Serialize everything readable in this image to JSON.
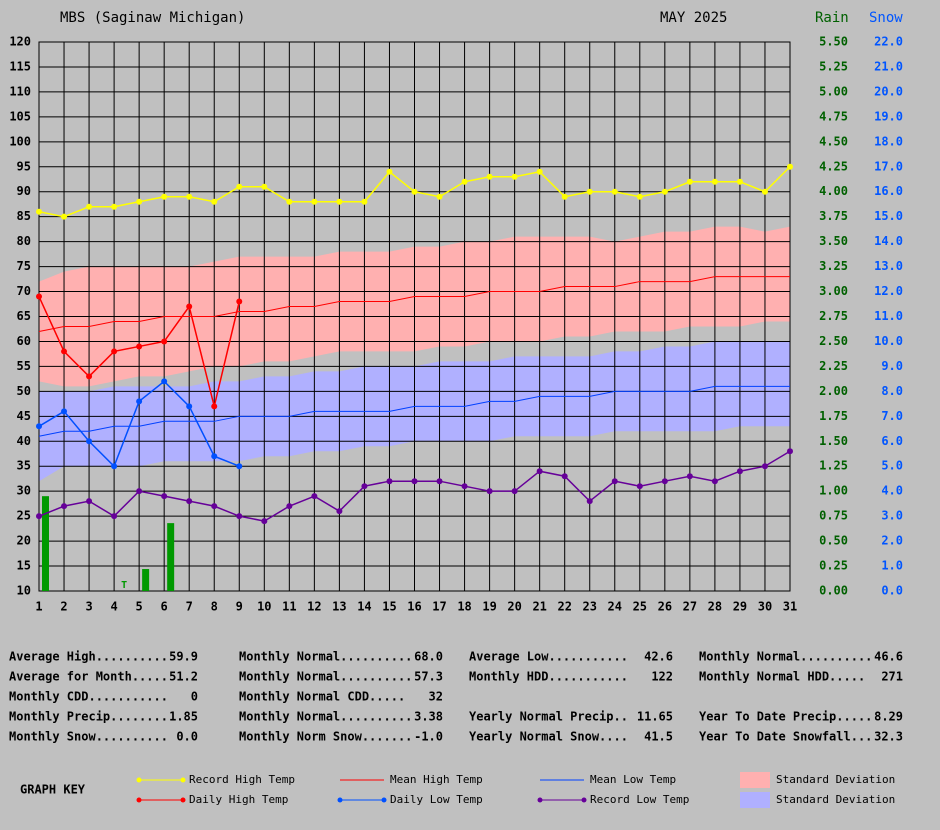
{
  "chart_data": {
    "type": "line",
    "title": "MBS (Saginaw Michigan)",
    "subtitle": "MAY 2025",
    "y2_label": "Rain",
    "y3_label": "Snow",
    "x": [
      1,
      2,
      3,
      4,
      5,
      6,
      7,
      8,
      9,
      10,
      11,
      12,
      13,
      14,
      15,
      16,
      17,
      18,
      19,
      20,
      21,
      22,
      23,
      24,
      25,
      26,
      27,
      28,
      29,
      30,
      31
    ],
    "xlim": [
      1,
      31
    ],
    "ylim": [
      10,
      120
    ],
    "yticks": [
      10,
      15,
      20,
      25,
      30,
      35,
      40,
      45,
      50,
      55,
      60,
      65,
      70,
      75,
      80,
      85,
      90,
      95,
      100,
      105,
      110,
      115,
      120
    ],
    "y2lim": [
      0,
      5.5
    ],
    "y2ticks": [
      {
        "value": 0,
        "label": "0.00"
      },
      {
        "value": 0.25,
        "label": "0.25"
      },
      {
        "value": 0.5,
        "label": "0.50"
      },
      {
        "value": 0.75,
        "label": "0.75"
      },
      {
        "value": 1,
        "label": "1.00"
      },
      {
        "value": 1.25,
        "label": "1.25"
      },
      {
        "value": 1.5,
        "label": "1.50"
      },
      {
        "value": 1.75,
        "label": "1.75"
      },
      {
        "value": 2,
        "label": "2.00"
      },
      {
        "value": 2.25,
        "label": "2.25"
      },
      {
        "value": 2.5,
        "label": "2.50"
      },
      {
        "value": 2.75,
        "label": "2.75"
      },
      {
        "value": 3,
        "label": "3.00"
      },
      {
        "value": 3.25,
        "label": "3.25"
      },
      {
        "value": 3.5,
        "label": "3.50"
      },
      {
        "value": 3.75,
        "label": "3.75"
      },
      {
        "value": 4,
        "label": "4.00"
      },
      {
        "value": 4.25,
        "label": "4.25"
      },
      {
        "value": 4.5,
        "label": "4.50"
      },
      {
        "value": 4.75,
        "label": "4.75"
      },
      {
        "value": 5,
        "label": "5.00"
      },
      {
        "value": 5.25,
        "label": "5.25"
      },
      {
        "value": 5.5,
        "label": "5.50"
      }
    ],
    "y3lim": [
      0,
      22
    ],
    "y3ticks": [
      {
        "value": 0,
        "label": "0.0"
      },
      {
        "value": 1,
        "label": "1.0"
      },
      {
        "value": 2,
        "label": "2.0"
      },
      {
        "value": 3,
        "label": "3.0"
      },
      {
        "value": 4,
        "label": "4.0"
      },
      {
        "value": 5,
        "label": "5.0"
      },
      {
        "value": 6,
        "label": "6.0"
      },
      {
        "value": 7,
        "label": "7.0"
      },
      {
        "value": 8,
        "label": "8.0"
      },
      {
        "value": 9,
        "label": "9.0"
      },
      {
        "value": 10,
        "label": "10.0"
      },
      {
        "value": 11,
        "label": "11.0"
      },
      {
        "value": 12,
        "label": "12.0"
      },
      {
        "value": 13,
        "label": "13.0"
      },
      {
        "value": 14,
        "label": "14.0"
      },
      {
        "value": 15,
        "label": "15.0"
      },
      {
        "value": 16,
        "label": "16.0"
      },
      {
        "value": 17,
        "label": "17.0"
      },
      {
        "value": 18,
        "label": "18.0"
      },
      {
        "value": 19,
        "label": "19.0"
      },
      {
        "value": 20,
        "label": "20.0"
      },
      {
        "value": 21,
        "label": "21.0"
      },
      {
        "value": 22,
        "label": "22.0"
      }
    ],
    "grid": true,
    "bands": [
      {
        "name": "Standard Deviation",
        "color": "#ffb0b0",
        "upper": [
          72,
          74,
          75,
          75,
          75,
          75,
          75,
          76,
          77,
          77,
          77,
          77,
          78,
          78,
          78,
          79,
          79,
          80,
          80,
          81,
          81,
          81,
          81,
          80,
          81,
          82,
          82,
          83,
          83,
          82,
          83
        ],
        "lower": [
          52,
          51,
          51,
          52,
          53,
          53,
          54,
          55,
          55,
          56,
          56,
          57,
          58,
          58,
          58,
          58,
          59,
          59,
          60,
          60,
          60,
          61,
          61,
          62,
          62,
          62,
          63,
          63,
          63,
          64,
          64
        ]
      },
      {
        "name": "Standard Deviation",
        "color": "#b0b0ff",
        "upper": [
          50,
          50,
          50,
          51,
          51,
          51,
          51,
          52,
          52,
          53,
          53,
          54,
          54,
          55,
          55,
          55,
          56,
          56,
          56,
          57,
          57,
          57,
          57,
          58,
          58,
          59,
          59,
          60,
          60,
          60,
          60
        ],
        "lower": [
          32,
          35,
          35,
          35,
          35,
          36,
          36,
          36,
          36,
          37,
          37,
          38,
          38,
          39,
          39,
          40,
          40,
          40,
          40,
          41,
          41,
          41,
          41,
          42,
          42,
          42,
          42,
          42,
          43,
          43,
          43
        ]
      }
    ],
    "series": [
      {
        "name": "Record High Temp",
        "color": "#ffff00",
        "markers": true,
        "values": [
          86,
          85,
          87,
          87,
          88,
          89,
          89,
          88,
          91,
          91,
          88,
          88,
          88,
          88,
          94,
          90,
          89,
          92,
          93,
          93,
          94,
          89,
          90,
          90,
          89,
          90,
          92,
          92,
          92,
          90,
          95
        ]
      },
      {
        "name": "Mean High Temp",
        "color": "#ff0000",
        "markers": false,
        "values": [
          62,
          63,
          63,
          64,
          64,
          65,
          65,
          65,
          66,
          66,
          67,
          67,
          68,
          68,
          68,
          69,
          69,
          69,
          70,
          70,
          70,
          71,
          71,
          71,
          72,
          72,
          72,
          73,
          73,
          73,
          73
        ]
      },
      {
        "name": "Mean Low Temp",
        "color": "#0040ff",
        "markers": false,
        "values": [
          41,
          42,
          42,
          43,
          43,
          44,
          44,
          44,
          45,
          45,
          45,
          46,
          46,
          46,
          46,
          47,
          47,
          47,
          48,
          48,
          49,
          49,
          49,
          50,
          50,
          50,
          50,
          51,
          51,
          51,
          51
        ]
      },
      {
        "name": "Daily High Temp",
        "color": "#ff0000",
        "markers": true,
        "values": [
          69,
          58,
          53,
          58,
          59,
          60,
          67,
          47,
          68,
          null,
          null,
          null,
          null,
          null,
          null,
          null,
          null,
          null,
          null,
          null,
          null,
          null,
          null,
          null,
          null,
          null,
          null,
          null,
          null,
          null,
          null
        ]
      },
      {
        "name": "Daily Low Temp",
        "color": "#0050ff",
        "markers": true,
        "values": [
          43,
          46,
          40,
          35,
          48,
          52,
          47,
          37,
          35,
          null,
          null,
          null,
          null,
          null,
          null,
          null,
          null,
          null,
          null,
          null,
          null,
          null,
          null,
          null,
          null,
          null,
          null,
          null,
          null,
          null,
          null
        ]
      },
      {
        "name": "Record Low Temp",
        "color": "#660099",
        "markers": true,
        "values": [
          25,
          27,
          28,
          25,
          30,
          29,
          28,
          27,
          25,
          24,
          27,
          29,
          26,
          31,
          32,
          32,
          32,
          31,
          30,
          30,
          34,
          33,
          28,
          32,
          31,
          32,
          33,
          32,
          34,
          35,
          38
        ]
      }
    ],
    "rain": {
      "axis": "y2",
      "color": "#009900",
      "values": [
        0.95,
        0,
        0,
        0,
        0.22,
        0.68,
        0,
        0,
        0,
        null,
        null,
        null,
        null,
        null,
        null,
        null,
        null,
        null,
        null,
        null,
        null,
        null,
        null,
        null,
        null,
        null,
        null,
        null,
        null,
        null,
        null
      ]
    },
    "trace": {
      "x": 4,
      "label": "T"
    },
    "key_title": "GRAPH KEY"
  },
  "stats": [
    [
      {
        "label": "Average High..........",
        "value": "59.9"
      },
      {
        "label": "Average for Month.....",
        "value": "51.2"
      },
      {
        "label": "Monthly CDD...........",
        "value": "0"
      },
      {
        "label": "Monthly Precip........",
        "value": "1.85"
      },
      {
        "label": "Monthly Snow..........",
        "value": "0.0"
      }
    ],
    [
      {
        "label": "Monthly Normal..........",
        "value": "68.0"
      },
      {
        "label": "Monthly Normal..........",
        "value": "57.3"
      },
      {
        "label": "Monthly Normal CDD.....",
        "value": "32"
      },
      {
        "label": "Monthly Normal..........",
        "value": "3.38"
      },
      {
        "label": "Monthly Norm Snow.......",
        "value": "-1.0"
      }
    ],
    [
      {
        "label": "Average Low...........",
        "value": "42.6"
      },
      {
        "label": "Monthly HDD...........",
        "value": "122"
      },
      null,
      {
        "label": "Yearly Normal Precip..",
        "value": "11.65"
      },
      {
        "label": "Yearly Normal Snow....",
        "value": "41.5"
      }
    ],
    [
      {
        "label": "Monthly Normal..........",
        "value": "46.6"
      },
      {
        "label": "Monthly Normal HDD.....",
        "value": "271"
      },
      null,
      {
        "label": "Year To Date Precip.....",
        "value": "8.29"
      },
      {
        "label": "Year To Date Snowfall...",
        "value": "32.3"
      }
    ]
  ]
}
